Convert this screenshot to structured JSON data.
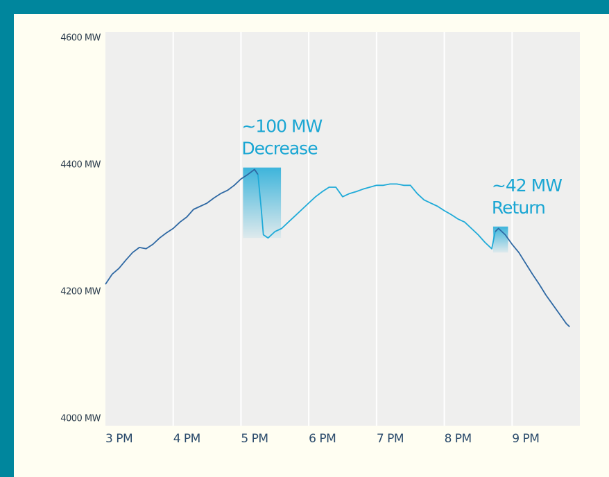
{
  "chart_data": {
    "type": "line",
    "xlim": [
      15,
      22
    ],
    "xticks": [
      {
        "value": 15,
        "label": "3 PM"
      },
      {
        "value": 16,
        "label": "4 PM"
      },
      {
        "value": 17,
        "label": "5 PM"
      },
      {
        "value": 18,
        "label": "6 PM"
      },
      {
        "value": 19,
        "label": "7 PM"
      },
      {
        "value": 20,
        "label": "8 PM"
      },
      {
        "value": 21,
        "label": "9 PM"
      }
    ],
    "ylim": [
      4000,
      4600
    ],
    "yticks": [
      {
        "value": 4000,
        "label": "4000 MW"
      },
      {
        "value": 4200,
        "label": "4200 MW"
      },
      {
        "value": 4400,
        "label": "4400 MW"
      },
      {
        "value": 4600,
        "label": "4600 MW"
      }
    ],
    "grid": "x",
    "series": [
      {
        "color": "#2e68a3",
        "x": [
          15.0,
          15.1,
          15.2,
          15.3,
          15.4,
          15.5,
          15.6,
          15.7,
          15.8,
          15.9,
          16.0,
          16.1,
          16.2,
          16.3,
          16.4,
          16.5,
          16.6,
          16.7,
          16.8,
          16.9,
          17.0,
          17.1,
          17.2,
          17.25
        ],
        "values": [
          4212,
          4228,
          4237,
          4250,
          4262,
          4270,
          4268,
          4275,
          4285,
          4293,
          4300,
          4310,
          4318,
          4330,
          4335,
          4340,
          4348,
          4355,
          4360,
          4368,
          4378,
          4385,
          4393,
          4385
        ]
      },
      {
        "color": "#1eaad8",
        "x": [
          17.25,
          17.3,
          17.33,
          17.4,
          17.5,
          17.6,
          17.7,
          17.8,
          17.9,
          18.0,
          18.1,
          18.2,
          18.3,
          18.4,
          18.5,
          18.6,
          18.7,
          18.8,
          18.9,
          19.0,
          19.1,
          19.2,
          19.3,
          19.4,
          19.5,
          19.6,
          19.7,
          19.8,
          19.9,
          20.0,
          20.1,
          20.2,
          20.3,
          20.4,
          20.5,
          20.6,
          20.7,
          20.75
        ],
        "values": [
          4385,
          4330,
          4290,
          4285,
          4295,
          4300,
          4310,
          4320,
          4330,
          4340,
          4350,
          4358,
          4365,
          4365,
          4350,
          4355,
          4358,
          4362,
          4365,
          4368,
          4368,
          4370,
          4370,
          4368,
          4368,
          4355,
          4345,
          4340,
          4335,
          4328,
          4322,
          4315,
          4310,
          4300,
          4290,
          4278,
          4268,
          4295
        ]
      },
      {
        "color": "#2e68a3",
        "x": [
          20.75,
          20.8,
          20.9,
          21.0,
          21.1,
          21.2,
          21.3,
          21.4,
          21.5,
          21.6,
          21.7,
          21.8,
          21.85
        ],
        "values": [
          4295,
          4300,
          4290,
          4275,
          4262,
          4245,
          4228,
          4212,
          4195,
          4180,
          4165,
          4150,
          4145
        ]
      }
    ],
    "annotations": [
      {
        "text": [
          "~100 MW",
          "Decrease"
        ],
        "x": [
          17.03,
          17.59
        ],
        "y": [
          4285,
          4396
        ]
      },
      {
        "text": [
          "~42 MW",
          "Return"
        ],
        "x": [
          20.72,
          20.94
        ],
        "y": [
          4262,
          4303
        ]
      }
    ]
  }
}
